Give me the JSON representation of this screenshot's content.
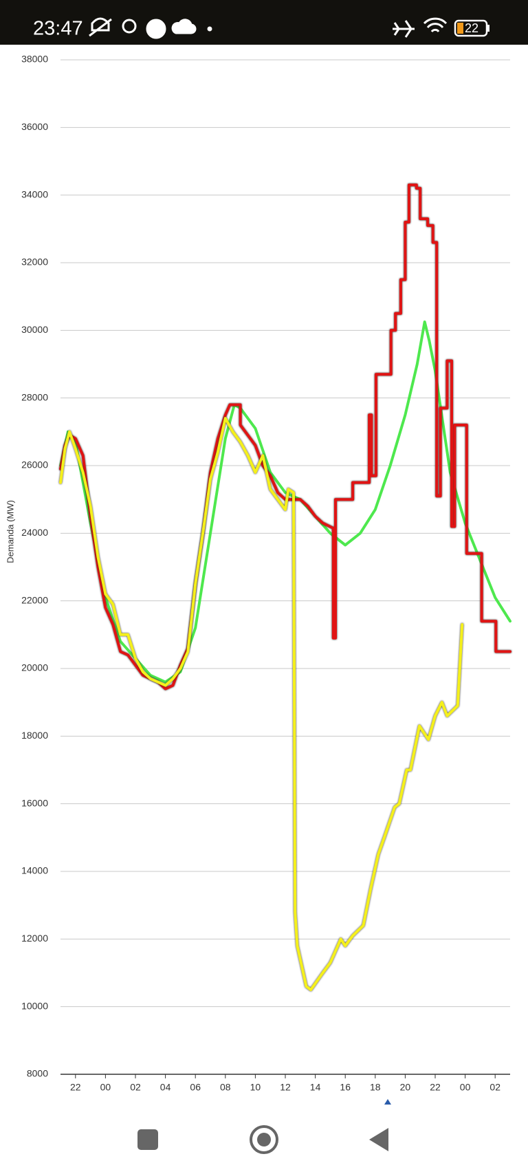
{
  "status_bar": {
    "time": "23:47",
    "battery": "22"
  },
  "chart_data": {
    "type": "line",
    "y_label": "Demanda (MW)",
    "ylim": [
      8000,
      38000
    ],
    "yticks": [
      8000,
      10000,
      12000,
      14000,
      16000,
      18000,
      20000,
      22000,
      24000,
      26000,
      28000,
      30000,
      32000,
      34000,
      36000,
      38000
    ],
    "xlim": [
      21,
      51
    ],
    "xticks": [
      22,
      {
        "value": 24,
        "label": "00"
      },
      {
        "value": 26,
        "label": "02"
      },
      {
        "value": 28,
        "label": "04"
      },
      {
        "value": 30,
        "label": "06"
      },
      {
        "value": 32,
        "label": "08"
      },
      {
        "value": 34,
        "label": "10"
      },
      {
        "value": 36,
        "label": "12"
      },
      {
        "value": 38,
        "label": "14"
      },
      {
        "value": 40,
        "label": "16"
      },
      {
        "value": 42,
        "label": "18"
      },
      {
        "value": 44,
        "label": "20"
      },
      {
        "value": 46,
        "label": "22"
      },
      {
        "value": 48,
        "label": "00"
      },
      {
        "value": 50,
        "label": "02"
      }
    ],
    "grid": true,
    "series": [
      {
        "color": "#4ee84e",
        "x": [
          21,
          21.5,
          22,
          23,
          24,
          25,
          26,
          27,
          28,
          29,
          30,
          31,
          32,
          32.6,
          33,
          34,
          35,
          36,
          37,
          38,
          39,
          40,
          41,
          42,
          43,
          44,
          44.8,
          45.3,
          45.6,
          46,
          47,
          48,
          49,
          50,
          51
        ],
        "values": [
          26000,
          27000,
          26700,
          24300,
          22100,
          20800,
          20300,
          19800,
          19600,
          19900,
          21200,
          24000,
          26800,
          27800,
          27700,
          27100,
          25800,
          25200,
          25000,
          24500,
          24000,
          23650,
          24000,
          24700,
          26000,
          27500,
          29000,
          30250,
          29700,
          28800,
          25800,
          24300,
          23200,
          22100,
          21400
        ]
      },
      {
        "color": "#e01414",
        "x": [
          21,
          21.3,
          21.6,
          22,
          22.5,
          23,
          23.5,
          24,
          24.5,
          25,
          25.5,
          26,
          26.5,
          27,
          27.5,
          28,
          28.5,
          29,
          29.5,
          30,
          30.5,
          31,
          31.5,
          32,
          32.3,
          33,
          33,
          34,
          34.5,
          35,
          35.5,
          36,
          37,
          37.5,
          38,
          38.5,
          39.2,
          39.2,
          39.35,
          39.35,
          40.5,
          40.5,
          41.6,
          41.6,
          41.75,
          41.75,
          42.05,
          42.05,
          43.05,
          43.05,
          43.35,
          43.35,
          43.7,
          43.7,
          44,
          44,
          44.25,
          44.25,
          44.75,
          44.75,
          45,
          45,
          45.5,
          45.5,
          45.85,
          45.85,
          46.1,
          46.1,
          46.35,
          46.35,
          46.8,
          46.8,
          47.1,
          47.1,
          47.3,
          47.3,
          48.1,
          48.1,
          49.1,
          49.1,
          50.05,
          50.05,
          51
        ],
        "values": [
          25900,
          26600,
          26900,
          26800,
          26300,
          24500,
          23000,
          21800,
          21300,
          20500,
          20400,
          20100,
          19800,
          19700,
          19600,
          19400,
          19500,
          20100,
          20600,
          22500,
          24000,
          25800,
          26800,
          27500,
          27800,
          27800,
          27200,
          26600,
          26000,
          25700,
          25200,
          25000,
          25000,
          24800,
          24500,
          24300,
          24150,
          20900,
          20900,
          25000,
          25000,
          25500,
          25500,
          27500,
          27500,
          25700,
          25700,
          28700,
          28700,
          30000,
          30000,
          30500,
          30500,
          31500,
          31500,
          33200,
          33200,
          34300,
          34300,
          34200,
          34200,
          33300,
          33300,
          33100,
          33100,
          32600,
          32600,
          25100,
          25100,
          27700,
          27700,
          29100,
          29100,
          24200,
          24200,
          27200,
          27200,
          23400,
          23400,
          21400,
          21400,
          20500,
          20500
        ]
      },
      {
        "color": "#f5f01c",
        "x": [
          21,
          21.3,
          21.6,
          22,
          22.5,
          23,
          23.5,
          24,
          24.5,
          25,
          25.5,
          26,
          26.5,
          27,
          27.5,
          28,
          28.5,
          29,
          29.5,
          30,
          30.5,
          31,
          31.5,
          32,
          32.5,
          33,
          33.5,
          34,
          34.5,
          35,
          35.5,
          36,
          36.2,
          36.55,
          36.65,
          36.8,
          37.4,
          37.7,
          38.5,
          39,
          39.7,
          40,
          40.5,
          41.2,
          41.7,
          42.2,
          42.6,
          43.3,
          43.6,
          44.1,
          44.35,
          44.95,
          45.55,
          46,
          46.45,
          46.8,
          47.5,
          47.8
        ],
        "values": [
          25500,
          26500,
          27000,
          26500,
          25800,
          24800,
          23300,
          22200,
          21900,
          21000,
          21000,
          20300,
          19900,
          19700,
          19600,
          19500,
          19700,
          20000,
          20500,
          22500,
          24000,
          25600,
          26400,
          27400,
          27000,
          26700,
          26300,
          25800,
          26300,
          25300,
          25000,
          24700,
          25300,
          25200,
          12800,
          11800,
          10600,
          10500,
          11000,
          11300,
          12000,
          11800,
          12100,
          12400,
          13500,
          14500,
          15000,
          15900,
          16000,
          17000,
          17000,
          18300,
          17900,
          18600,
          19000,
          18600,
          18900,
          21300
        ]
      }
    ]
  }
}
